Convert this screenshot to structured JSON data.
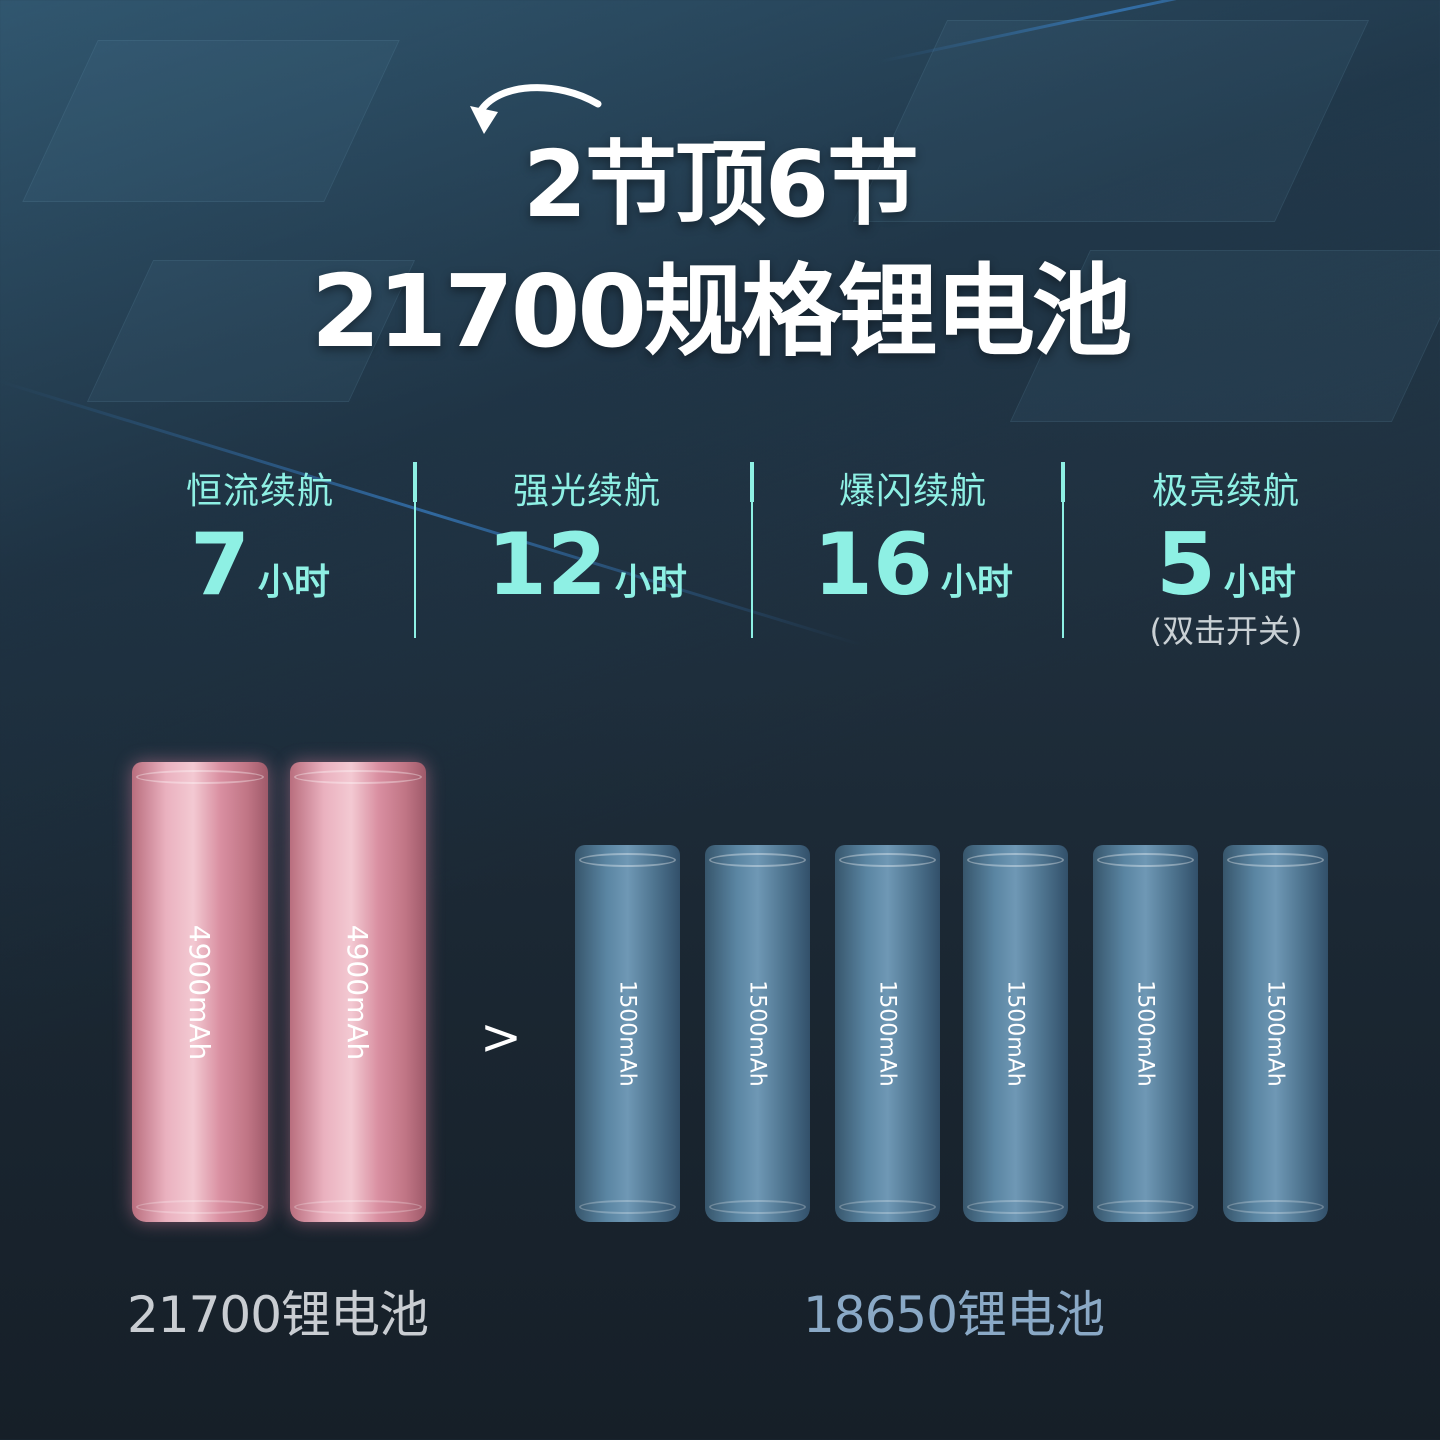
{
  "headline": {
    "line1": "2节顶6节",
    "line2": "21700规格锂电池"
  },
  "stats": [
    {
      "label": "恒流续航",
      "value": "7",
      "unit": "小时"
    },
    {
      "label": "强光续航",
      "value": "12",
      "unit": "小时"
    },
    {
      "label": "爆闪续航",
      "value": "16",
      "unit": "小时"
    },
    {
      "label": "极亮续航",
      "value": "5",
      "unit": "小时",
      "note": "(双击开关)"
    }
  ],
  "comparison": {
    "left": {
      "capacity": "4900mAh",
      "count": 2,
      "label": "21700锂电池",
      "color": "#eab1bf"
    },
    "operator": ">",
    "right": {
      "capacity": "1500mAh",
      "count": 6,
      "label": "18650锂电池",
      "color": "#6f98b5"
    }
  },
  "colors": {
    "accent": "#8ef0e4",
    "title": "#ffffff",
    "right_label": "#8aa9c6",
    "left_label": "#c9cdd2"
  }
}
